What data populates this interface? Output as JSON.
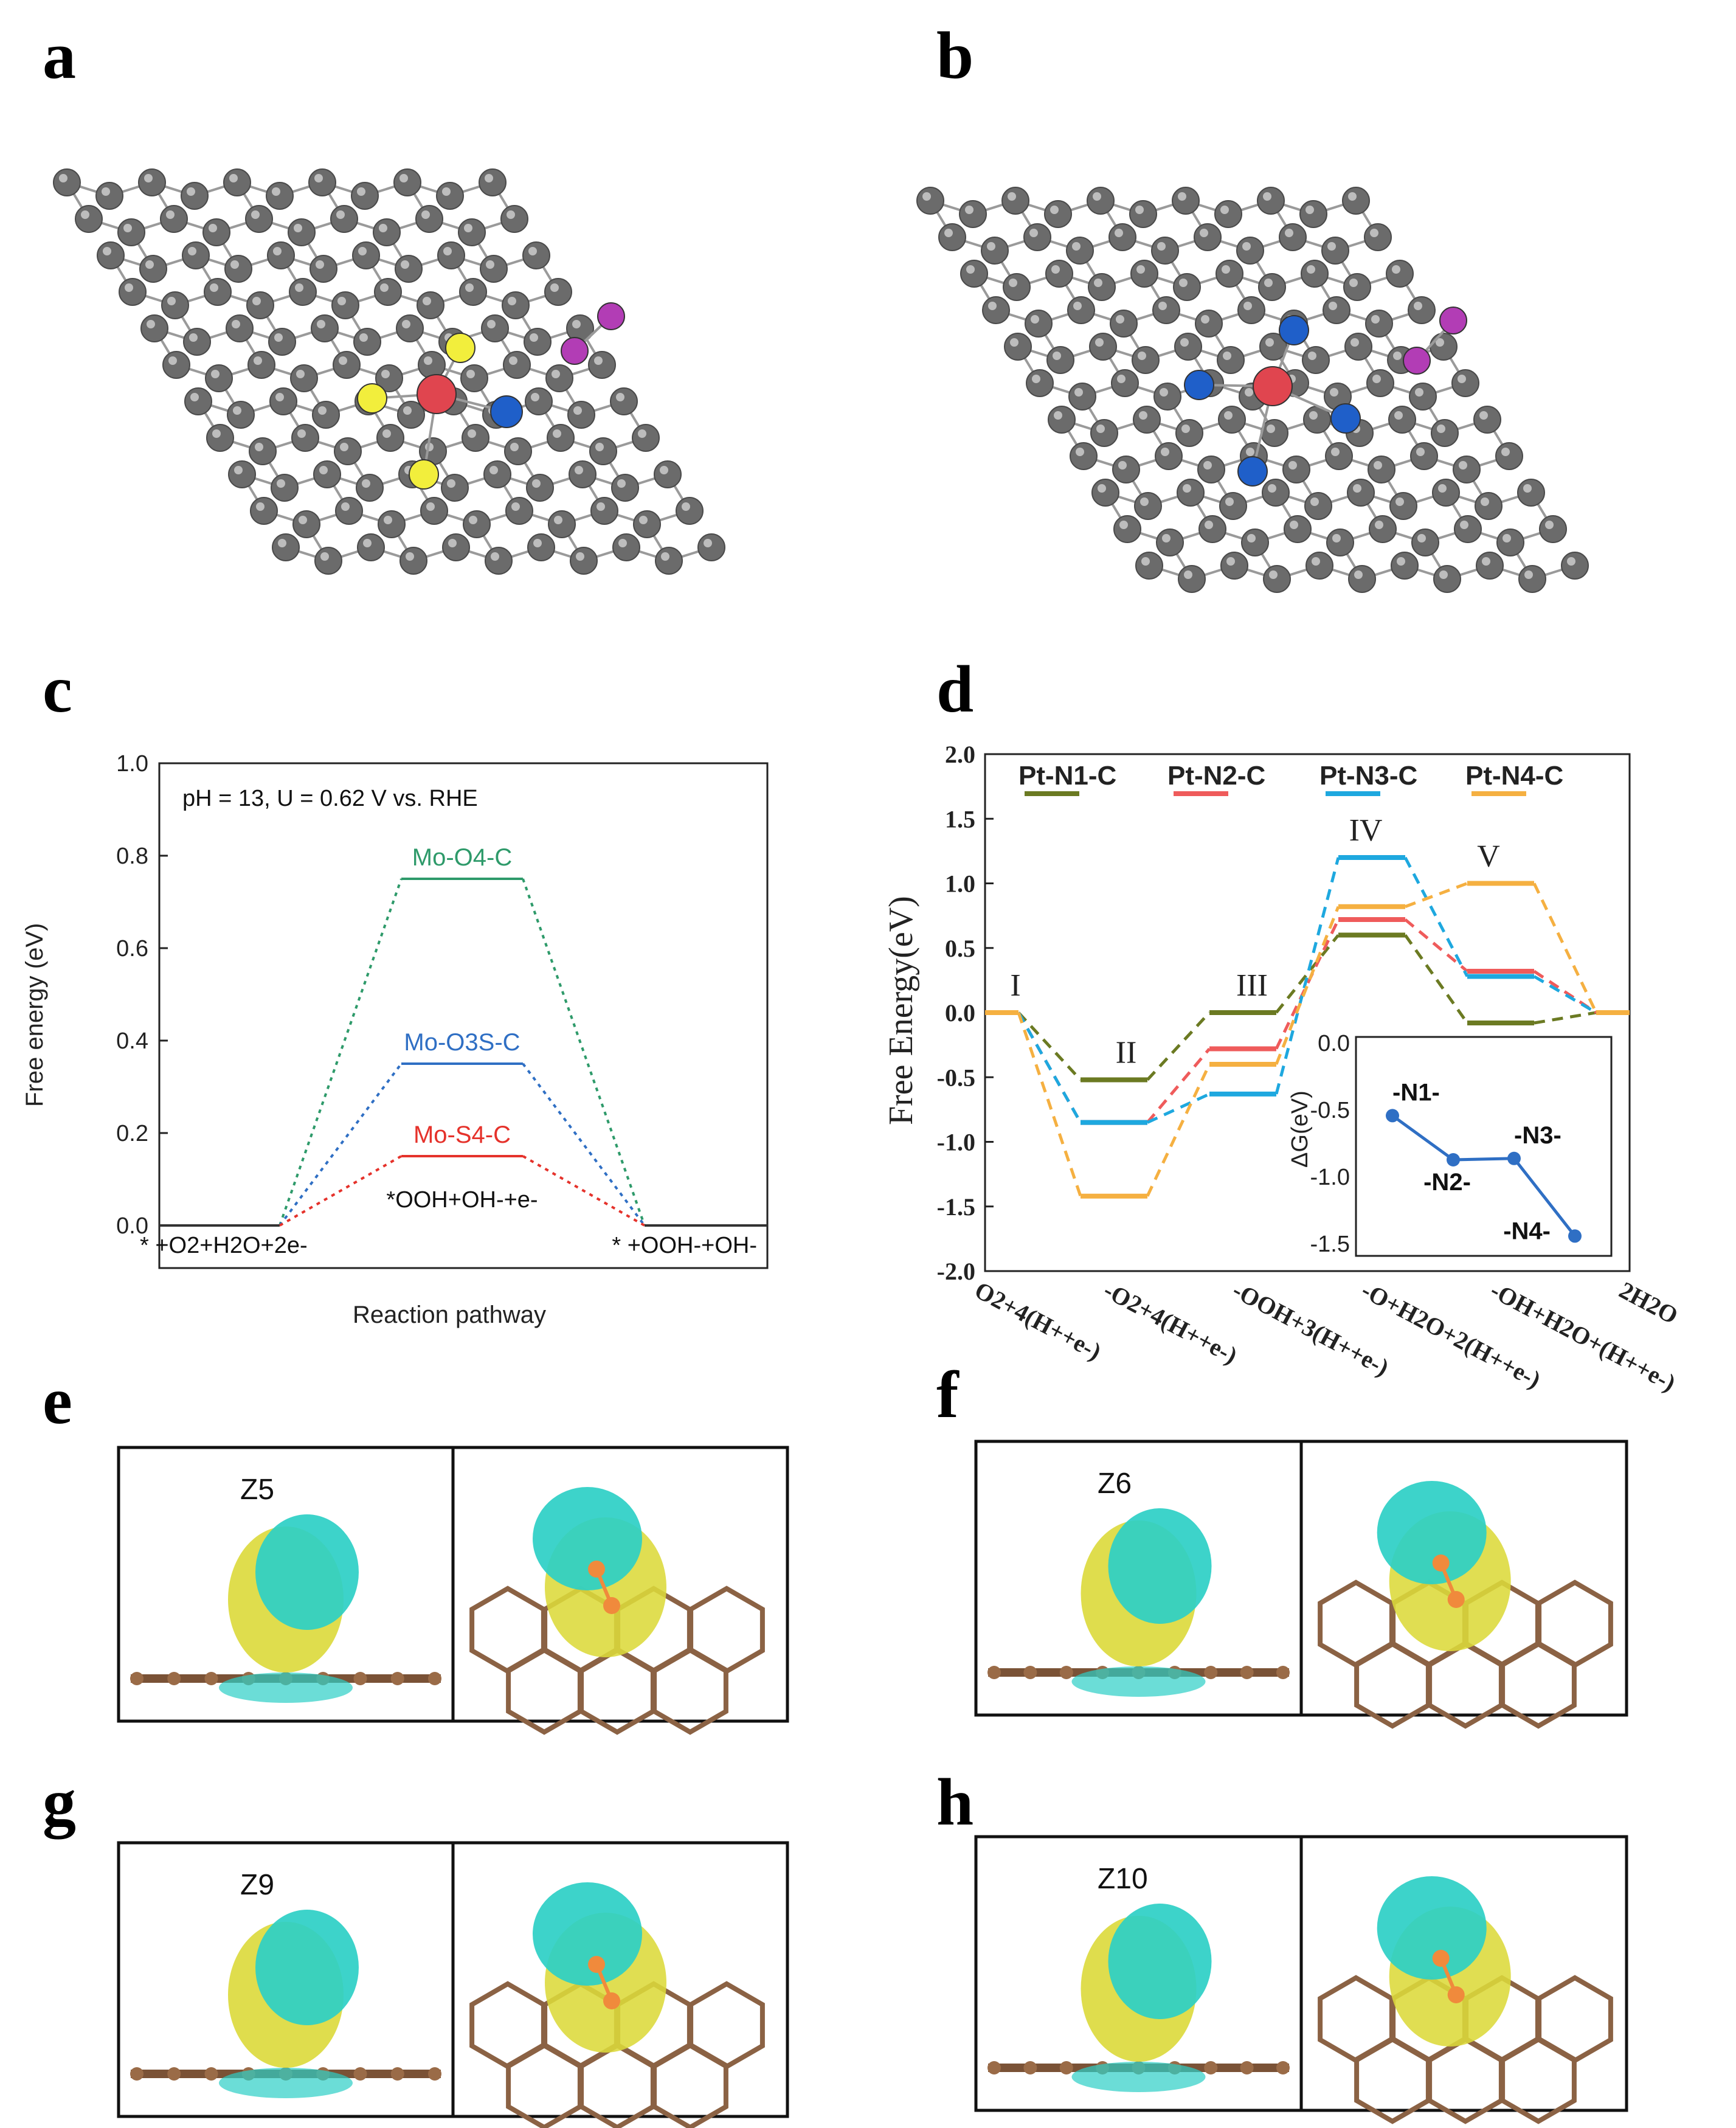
{
  "panel_labels": [
    "a",
    "b",
    "c",
    "d",
    "e",
    "f",
    "g",
    "h"
  ],
  "colors": {
    "carbon": "#6b6b6b",
    "metal": "#e0454f",
    "sulfur": "#f2ee3c",
    "nitrogen": "#1f5fc9",
    "oxygen": "#b23db5",
    "green": "#2e9a6a",
    "blue": "#2f6fc4",
    "red": "#e5322b",
    "olive": "#6b7a22",
    "salmon": "#ef5b5b",
    "cyan": "#1ea8df",
    "orange": "#f5b041",
    "isosurface_cyan": "#2ccfc6",
    "isosurface_yellow": "#dcd93a"
  },
  "structure_icons": [
    "graphene-sheet-icon",
    "graphene-sheet-icon"
  ],
  "isosurface_panels": [
    {
      "letter": "e",
      "title": "Z5"
    },
    {
      "letter": "f",
      "title": "Z6"
    },
    {
      "letter": "g",
      "title": "Z9"
    },
    {
      "letter": "h",
      "title": "Z10"
    }
  ],
  "chart_data": [
    {
      "panel": "c",
      "type": "line",
      "title": "",
      "annotation": "pH = 13, U = 0.62 V vs. RHE",
      "ylabel": "Free energy (eV)",
      "xlabel": "Reaction pathway",
      "ylim": [
        0.0,
        1.0
      ],
      "yticks": [
        "0.0",
        "0.2",
        "0.4",
        "0.6",
        "0.8",
        "1.0"
      ],
      "step_labels": [
        "* +O2+H2O+2e-",
        "*OOH+OH-+e-",
        "* +OOH-+OH-"
      ],
      "series": [
        {
          "name": "Mo-O4-C",
          "values": [
            0.0,
            0.75,
            0.0
          ]
        },
        {
          "name": "Mo-O3S-C",
          "values": [
            0.0,
            0.35,
            0.0
          ]
        },
        {
          "name": "Mo-S4-C",
          "values": [
            0.0,
            0.15,
            0.0
          ]
        }
      ]
    },
    {
      "panel": "d",
      "type": "line",
      "ylabel": "Free Energy(eV)",
      "xlabel": "",
      "ylim": [
        -2.0,
        2.0
      ],
      "yticks": [
        "-2.0",
        "-1.5",
        "-1.0",
        "-0.5",
        "0.0",
        "0.5",
        "1.0",
        "1.5",
        "2.0"
      ],
      "categories": [
        "O2+4(H++e-)",
        "-O2+4(H++e-)",
        "-OOH+3(H++e-)",
        "-O+H2O+2(H++e-)",
        "-OH+H2O+(H++e-)",
        "2H2O"
      ],
      "step_roman": [
        "I",
        "II",
        "III",
        "IV",
        "V"
      ],
      "series": [
        {
          "name": "Pt-N1-C",
          "values": [
            0.0,
            -0.52,
            0.0,
            0.6,
            -0.08,
            0.0
          ]
        },
        {
          "name": "Pt-N2-C",
          "values": [
            0.0,
            -0.85,
            -0.28,
            0.72,
            0.32,
            0.0
          ]
        },
        {
          "name": "Pt-N3-C",
          "values": [
            0.0,
            -0.85,
            -0.63,
            1.2,
            0.28,
            0.0
          ]
        },
        {
          "name": "Pt-N4-C",
          "values": [
            0.0,
            -1.42,
            -0.4,
            0.82,
            1.0,
            0.0
          ]
        }
      ],
      "inset": {
        "ylabel": "ΔG(eV)",
        "ylim": [
          -1.5,
          0.0
        ],
        "yticks": [
          "0.0",
          "-0.5",
          "-1.0",
          "-1.5"
        ],
        "categories": [
          "-N1-",
          "-N2-",
          "-N3-",
          "-N4-"
        ],
        "values": [
          -0.52,
          -0.85,
          -0.84,
          -1.42
        ]
      }
    }
  ]
}
